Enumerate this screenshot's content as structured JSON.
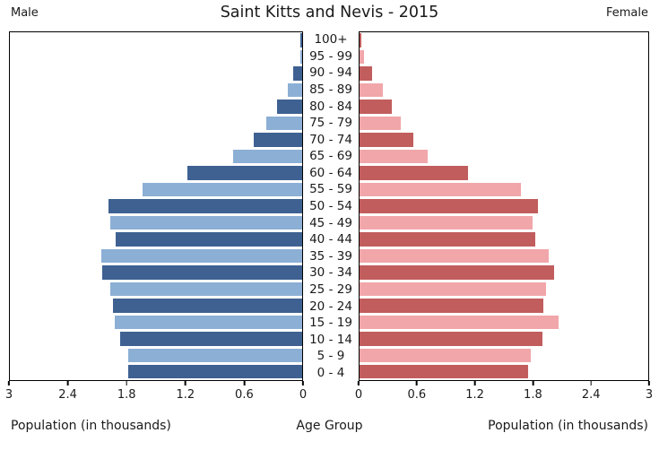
{
  "header": {
    "male_label": "Male",
    "title": "Saint Kitts and Nevis - 2015",
    "female_label": "Female"
  },
  "footer": {
    "left_caption": "Population (in thousands)",
    "center_caption": "Age Group",
    "right_caption": "Population (in thousands)"
  },
  "colors": {
    "male_dark": "#3e6192",
    "male_light": "#8cafd5",
    "female_dark": "#c25d5d",
    "female_light": "#f1a6aa",
    "panel_border": "#000000"
  },
  "chart_data": {
    "type": "bar",
    "subtype": "population-pyramid",
    "title": "Saint Kitts and Nevis - 2015",
    "center_label": "Age Group",
    "xlabel": "Population (in thousands)",
    "xlim": [
      0,
      3
    ],
    "grid": false,
    "age_groups_top_to_bottom": [
      "100+",
      "95 - 99",
      "90 - 94",
      "85 - 89",
      "80 - 84",
      "75 - 79",
      "70 - 74",
      "65 - 69",
      "60 - 64",
      "55 - 59",
      "50 - 54",
      "45 - 49",
      "40 - 44",
      "35 - 39",
      "30 - 34",
      "25 - 29",
      "20 - 24",
      "15 - 19",
      "10 - 14",
      "5 - 9",
      "0 - 4"
    ],
    "series": [
      {
        "name": "Male",
        "side": "left",
        "values_top_to_bottom": [
          0.02,
          0.02,
          0.09,
          0.15,
          0.26,
          0.37,
          0.5,
          0.71,
          1.18,
          1.64,
          1.99,
          1.97,
          1.91,
          2.06,
          2.05,
          1.97,
          1.94,
          1.92,
          1.87,
          1.79,
          1.79
        ]
      },
      {
        "name": "Female",
        "side": "right",
        "values_top_to_bottom": [
          0.02,
          0.05,
          0.13,
          0.24,
          0.34,
          0.43,
          0.56,
          0.71,
          1.13,
          1.68,
          1.85,
          1.8,
          1.83,
          1.97,
          2.02,
          1.94,
          1.91,
          2.07,
          1.9,
          1.78,
          1.75
        ]
      }
    ],
    "male_axis_ticks": [
      "3",
      "2.4",
      "1.8",
      "1.2",
      "0.6",
      "0"
    ],
    "female_axis_ticks": [
      "0",
      "0.6",
      "1.2",
      "1.8",
      "2.4",
      "3"
    ]
  }
}
